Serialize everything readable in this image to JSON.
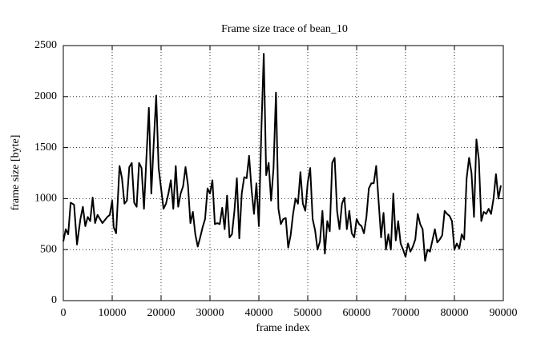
{
  "chart_data": {
    "type": "line",
    "title": "Frame size trace of bean_10",
    "xlabel": "frame index",
    "ylabel": "frame size [byte]",
    "x": [
      0,
      500,
      1000,
      1500,
      2200,
      2800,
      3500,
      4000,
      4500,
      5000,
      5500,
      6000,
      6500,
      7000,
      8000,
      9000,
      9500,
      10000,
      10300,
      10800,
      11500,
      12000,
      12500,
      13000,
      13500,
      14000,
      14500,
      15000,
      15500,
      16000,
      16500,
      17000,
      17500,
      18000,
      18500,
      19000,
      19500,
      20000,
      20500,
      21000,
      21500,
      22000,
      22500,
      23000,
      23500,
      24000,
      24500,
      25000,
      25500,
      26000,
      26500,
      27000,
      27500,
      28000,
      28500,
      29000,
      29500,
      30000,
      30500,
      31000,
      31500,
      32000,
      32500,
      33000,
      33500,
      34000,
      34500,
      35000,
      35500,
      36000,
      36500,
      37000,
      37500,
      38000,
      38500,
      39000,
      39500,
      40000,
      40500,
      41000,
      41500,
      42000,
      42500,
      43000,
      43500,
      44000,
      44500,
      45000,
      45500,
      46000,
      46500,
      47000,
      47500,
      48000,
      48500,
      49000,
      49500,
      50000,
      50500,
      51000,
      51500,
      52000,
      52500,
      53000,
      53500,
      54000,
      54500,
      55000,
      55500,
      56000,
      56500,
      57000,
      57500,
      58000,
      58500,
      59000,
      59500,
      60000,
      60500,
      61000,
      61500,
      62000,
      62500,
      63000,
      63500,
      64000,
      64500,
      65000,
      65500,
      66000,
      66500,
      67000,
      67500,
      68000,
      68500,
      69000,
      69500,
      70000,
      70500,
      71000,
      71500,
      72000,
      72500,
      73000,
      73500,
      74000,
      74500,
      75000,
      75500,
      76000,
      76500,
      77000,
      77500,
      78000,
      78500,
      79000,
      79500,
      80000,
      80500,
      81000,
      81500,
      82000,
      82500,
      83000,
      83500,
      84000,
      84500,
      85000,
      85500,
      86000,
      86500,
      87000,
      87500,
      88000,
      88500,
      89000,
      89500
    ],
    "series": [
      {
        "name": "bean_10",
        "color": "#000000",
        "values": [
          580,
          700,
          650,
          960,
          940,
          550,
          800,
          920,
          730,
          820,
          780,
          1010,
          760,
          840,
          760,
          820,
          840,
          980,
          720,
          660,
          1320,
          1200,
          950,
          980,
          1310,
          1350,
          960,
          920,
          1350,
          1300,
          900,
          1400,
          1890,
          1050,
          1550,
          2010,
          1300,
          1100,
          900,
          950,
          1050,
          1180,
          900,
          1320,
          920,
          1050,
          1120,
          1310,
          1130,
          760,
          870,
          650,
          530,
          620,
          720,
          800,
          1100,
          1050,
          1180,
          750,
          760,
          750,
          910,
          700,
          1030,
          620,
          650,
          880,
          1200,
          610,
          1050,
          1210,
          1200,
          1420,
          1090,
          850,
          1150,
          730,
          1650,
          2420,
          1230,
          1350,
          980,
          1300,
          2040,
          900,
          750,
          800,
          810,
          520,
          640,
          850,
          1000,
          950,
          1260,
          950,
          880,
          1160,
          1300,
          800,
          690,
          500,
          580,
          880,
          460,
          780,
          680,
          1350,
          1400,
          880,
          700,
          950,
          1010,
          700,
          880,
          660,
          620,
          800,
          750,
          730,
          660,
          820,
          1100,
          1150,
          1150,
          1320,
          970,
          620,
          860,
          500,
          650,
          500,
          1050,
          590,
          780,
          560,
          500,
          430,
          560,
          480,
          530,
          600,
          850,
          750,
          700,
          390,
          500,
          480,
          590,
          700,
          570,
          600,
          640,
          880,
          850,
          830,
          780,
          500,
          560,
          510,
          650,
          600,
          1200,
          1400,
          1250,
          820,
          1580,
          1380,
          780,
          870,
          850,
          900,
          850,
          1000,
          1240,
          1000,
          1130
        ]
      }
    ],
    "xlim": [
      0,
      90000
    ],
    "ylim": [
      0,
      2500
    ],
    "xticks": [
      0,
      10000,
      20000,
      30000,
      40000,
      50000,
      60000,
      70000,
      80000,
      90000
    ],
    "yticks": [
      0,
      500,
      1000,
      1500,
      2000,
      2500
    ],
    "grid": true
  }
}
